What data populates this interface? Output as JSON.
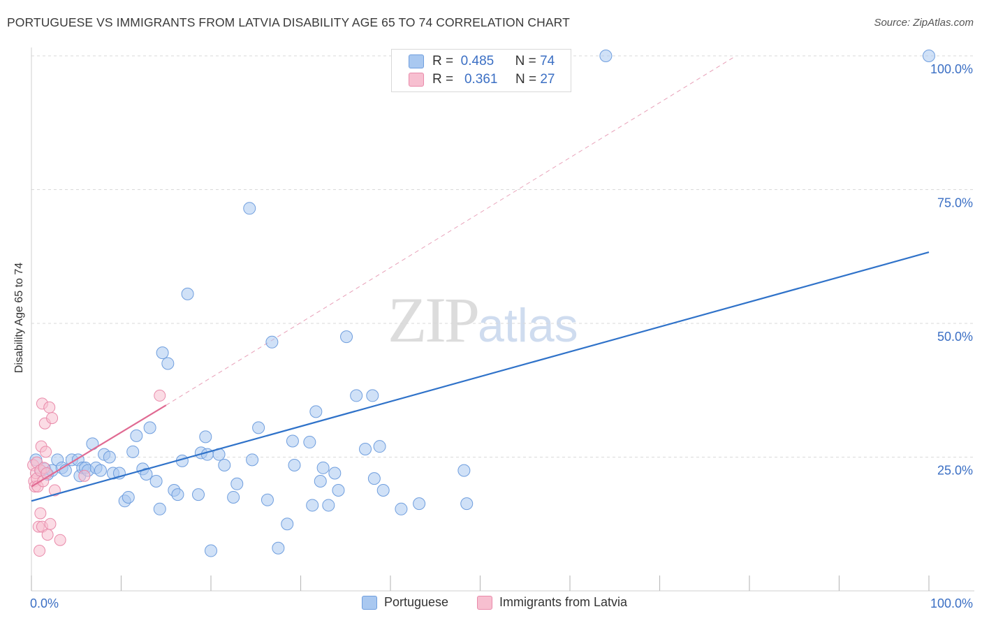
{
  "title": "PORTUGUESE VS IMMIGRANTS FROM LATVIA DISABILITY AGE 65 TO 74 CORRELATION CHART",
  "source": "Source: ZipAtlas.com",
  "watermark": {
    "zip": "ZIP",
    "atlas": "atlas"
  },
  "legend": {
    "items": [
      {
        "r_label": "R =",
        "r_value": "0.485",
        "n_label": "N =",
        "n_value": "74"
      },
      {
        "r_label": "R =",
        "r_value": "0.361",
        "n_label": "N =",
        "n_value": "27"
      }
    ]
  },
  "bottom_legend": {
    "portuguese": "Portuguese",
    "latvia": "Immigrants from Latvia"
  },
  "colors": {
    "blue_fill": "#a9c8f0",
    "blue_stroke": "#6f9ede",
    "blue_line": "#2f72c9",
    "pink_fill": "#f7bfd0",
    "pink_stroke": "#e98aaa",
    "pink_line": "#e06a92",
    "axis_text": "#3b6fc4",
    "grid": "#d9d9d9"
  },
  "chart_data": {
    "type": "scatter",
    "title": "PORTUGUESE VS IMMIGRANTS FROM LATVIA DISABILITY AGE 65 TO 74 CORRELATION CHART",
    "xlabel": "",
    "ylabel": "Disability Age 65 to 74",
    "xlim": [
      0,
      100
    ],
    "ylim": [
      0,
      100
    ],
    "x_tick_labels": [
      "0.0%",
      "100.0%"
    ],
    "y_ticks": [
      25,
      50,
      75,
      100
    ],
    "y_tick_labels": [
      "25.0%",
      "50.0%",
      "75.0%",
      "100.0%"
    ],
    "series": [
      {
        "name": "Portuguese",
        "r": 0.485,
        "n": 74,
        "trend": {
          "x": [
            0,
            100
          ],
          "y": [
            16.8,
            63.3
          ],
          "style": "solid"
        },
        "points": [
          {
            "x": 0.5,
            "y": 24.5
          },
          {
            "x": 1.0,
            "y": 22.5
          },
          {
            "x": 1.5,
            "y": 22.8
          },
          {
            "x": 1.8,
            "y": 21.8
          },
          {
            "x": 2.3,
            "y": 22.5
          },
          {
            "x": 2.9,
            "y": 24.5
          },
          {
            "x": 3.4,
            "y": 23.0
          },
          {
            "x": 3.8,
            "y": 22.5
          },
          {
            "x": 4.5,
            "y": 24.5
          },
          {
            "x": 5.2,
            "y": 24.5
          },
          {
            "x": 5.4,
            "y": 21.5
          },
          {
            "x": 5.7,
            "y": 23.0
          },
          {
            "x": 6.0,
            "y": 23.0
          },
          {
            "x": 6.3,
            "y": 22.5
          },
          {
            "x": 6.8,
            "y": 27.5
          },
          {
            "x": 7.2,
            "y": 23.0
          },
          {
            "x": 7.7,
            "y": 22.5
          },
          {
            "x": 8.1,
            "y": 25.5
          },
          {
            "x": 8.7,
            "y": 25.0
          },
          {
            "x": 9.1,
            "y": 22.0
          },
          {
            "x": 9.8,
            "y": 22.0
          },
          {
            "x": 10.4,
            "y": 16.8
          },
          {
            "x": 10.8,
            "y": 17.5
          },
          {
            "x": 11.3,
            "y": 26.0
          },
          {
            "x": 11.7,
            "y": 29.0
          },
          {
            "x": 12.4,
            "y": 22.8
          },
          {
            "x": 12.8,
            "y": 21.8
          },
          {
            "x": 13.2,
            "y": 30.5
          },
          {
            "x": 13.9,
            "y": 20.5
          },
          {
            "x": 14.3,
            "y": 15.3
          },
          {
            "x": 14.6,
            "y": 44.5
          },
          {
            "x": 15.2,
            "y": 42.5
          },
          {
            "x": 15.9,
            "y": 18.8
          },
          {
            "x": 16.3,
            "y": 18.0
          },
          {
            "x": 16.8,
            "y": 24.3
          },
          {
            "x": 17.4,
            "y": 55.5
          },
          {
            "x": 18.6,
            "y": 18.0
          },
          {
            "x": 18.9,
            "y": 25.8
          },
          {
            "x": 19.4,
            "y": 28.8
          },
          {
            "x": 19.6,
            "y": 25.5
          },
          {
            "x": 20.0,
            "y": 7.5
          },
          {
            "x": 20.9,
            "y": 25.5
          },
          {
            "x": 21.5,
            "y": 23.5
          },
          {
            "x": 22.5,
            "y": 17.5
          },
          {
            "x": 22.9,
            "y": 20.0
          },
          {
            "x": 24.3,
            "y": 71.5
          },
          {
            "x": 24.6,
            "y": 24.5
          },
          {
            "x": 25.3,
            "y": 30.5
          },
          {
            "x": 26.3,
            "y": 17.0
          },
          {
            "x": 26.8,
            "y": 46.5
          },
          {
            "x": 27.5,
            "y": 8.0
          },
          {
            "x": 28.5,
            "y": 12.5
          },
          {
            "x": 29.1,
            "y": 28.0
          },
          {
            "x": 29.3,
            "y": 23.5
          },
          {
            "x": 31.0,
            "y": 27.8
          },
          {
            "x": 31.3,
            "y": 16.0
          },
          {
            "x": 31.7,
            "y": 33.5
          },
          {
            "x": 32.2,
            "y": 20.5
          },
          {
            "x": 32.5,
            "y": 23.0
          },
          {
            "x": 33.1,
            "y": 16.0
          },
          {
            "x": 33.8,
            "y": 22.0
          },
          {
            "x": 34.2,
            "y": 18.8
          },
          {
            "x": 35.1,
            "y": 47.5
          },
          {
            "x": 36.2,
            "y": 36.5
          },
          {
            "x": 37.2,
            "y": 26.5
          },
          {
            "x": 38.0,
            "y": 36.5
          },
          {
            "x": 38.2,
            "y": 21.0
          },
          {
            "x": 38.8,
            "y": 27.0
          },
          {
            "x": 39.2,
            "y": 18.8
          },
          {
            "x": 41.2,
            "y": 15.3
          },
          {
            "x": 43.2,
            "y": 16.3
          },
          {
            "x": 48.2,
            "y": 22.5
          },
          {
            "x": 48.5,
            "y": 16.3
          },
          {
            "x": 64.0,
            "y": 100.0
          },
          {
            "x": 100.0,
            "y": 100.0
          }
        ]
      },
      {
        "name": "Immigrants from Latvia",
        "r": 0.361,
        "n": 27,
        "trend": {
          "x": [
            0,
            15
          ],
          "y": [
            19.5,
            34.7
          ],
          "style": "solid"
        },
        "trend_extension": {
          "x": [
            15,
            78.5
          ],
          "y": [
            34.7,
            100.0
          ],
          "style": "dashed"
        },
        "points": [
          {
            "x": 0.2,
            "y": 23.5
          },
          {
            "x": 0.3,
            "y": 20.5
          },
          {
            "x": 0.4,
            "y": 19.5
          },
          {
            "x": 0.5,
            "y": 22.0
          },
          {
            "x": 0.6,
            "y": 24.0
          },
          {
            "x": 0.6,
            "y": 21.0
          },
          {
            "x": 0.7,
            "y": 19.5
          },
          {
            "x": 0.8,
            "y": 12.0
          },
          {
            "x": 0.9,
            "y": 7.5
          },
          {
            "x": 1.0,
            "y": 14.5
          },
          {
            "x": 1.0,
            "y": 22.5
          },
          {
            "x": 1.1,
            "y": 27.0
          },
          {
            "x": 1.2,
            "y": 12.0
          },
          {
            "x": 1.2,
            "y": 35.0
          },
          {
            "x": 1.3,
            "y": 20.5
          },
          {
            "x": 1.4,
            "y": 23.0
          },
          {
            "x": 1.5,
            "y": 31.3
          },
          {
            "x": 1.6,
            "y": 26.0
          },
          {
            "x": 1.7,
            "y": 22.0
          },
          {
            "x": 1.8,
            "y": 10.5
          },
          {
            "x": 2.0,
            "y": 34.3
          },
          {
            "x": 2.1,
            "y": 12.5
          },
          {
            "x": 2.3,
            "y": 32.3
          },
          {
            "x": 2.6,
            "y": 18.8
          },
          {
            "x": 3.2,
            "y": 9.5
          },
          {
            "x": 5.9,
            "y": 21.5
          },
          {
            "x": 14.3,
            "y": 36.5
          }
        ]
      }
    ]
  }
}
